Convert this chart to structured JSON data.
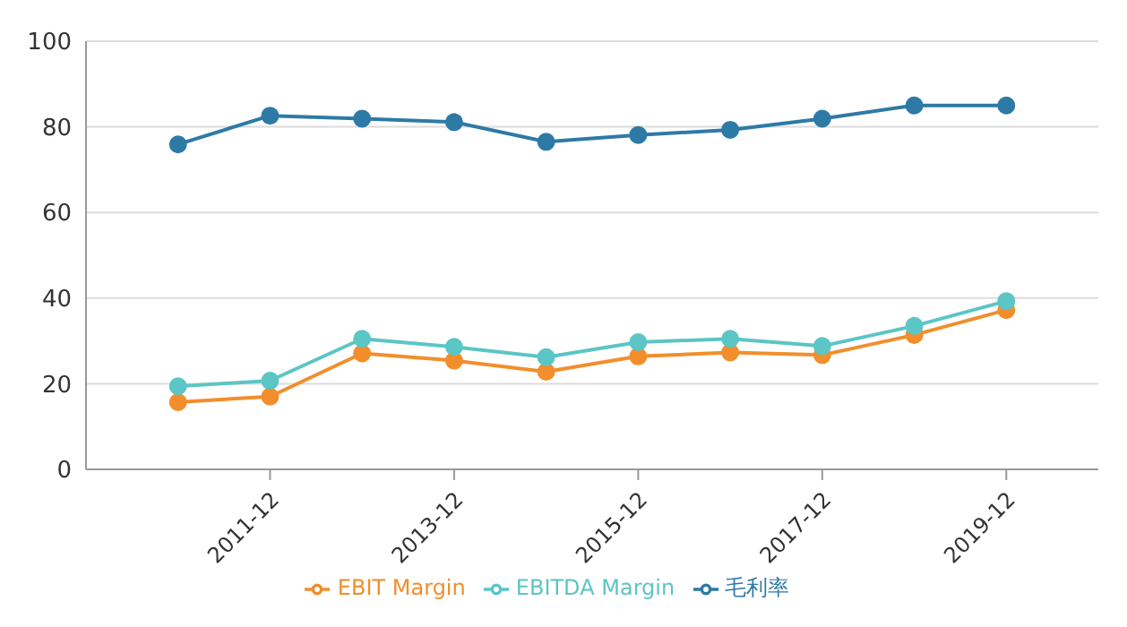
{
  "chart_data": {
    "type": "line",
    "categories": [
      null,
      "2011-12",
      null,
      "2013-12",
      null,
      "2015-12",
      null,
      "2017-12",
      null,
      "2019-12"
    ],
    "series": [
      {
        "name": "毛利率",
        "color": "#2e7aa6",
        "values": [
          75.9,
          82.6,
          81.9,
          81.1,
          76.5,
          78.1,
          79.3,
          81.9,
          85.0,
          85.0
        ]
      },
      {
        "name": "EBIT Margin",
        "color": "#f28e2b",
        "values": [
          15.7,
          17.0,
          27.1,
          25.4,
          22.8,
          26.4,
          27.3,
          26.7,
          31.4,
          37.2
        ]
      },
      {
        "name": "EBITDA Margin",
        "color": "#5cc5c5",
        "values": [
          19.4,
          20.7,
          30.5,
          28.6,
          26.2,
          29.7,
          30.5,
          28.8,
          33.5,
          39.3
        ]
      }
    ],
    "ylim": [
      0,
      100
    ],
    "yticks": [
      0,
      20,
      40,
      60,
      80,
      100
    ],
    "grid": "y",
    "legend": "bottom",
    "marker": "circle",
    "line_style": "solid"
  }
}
